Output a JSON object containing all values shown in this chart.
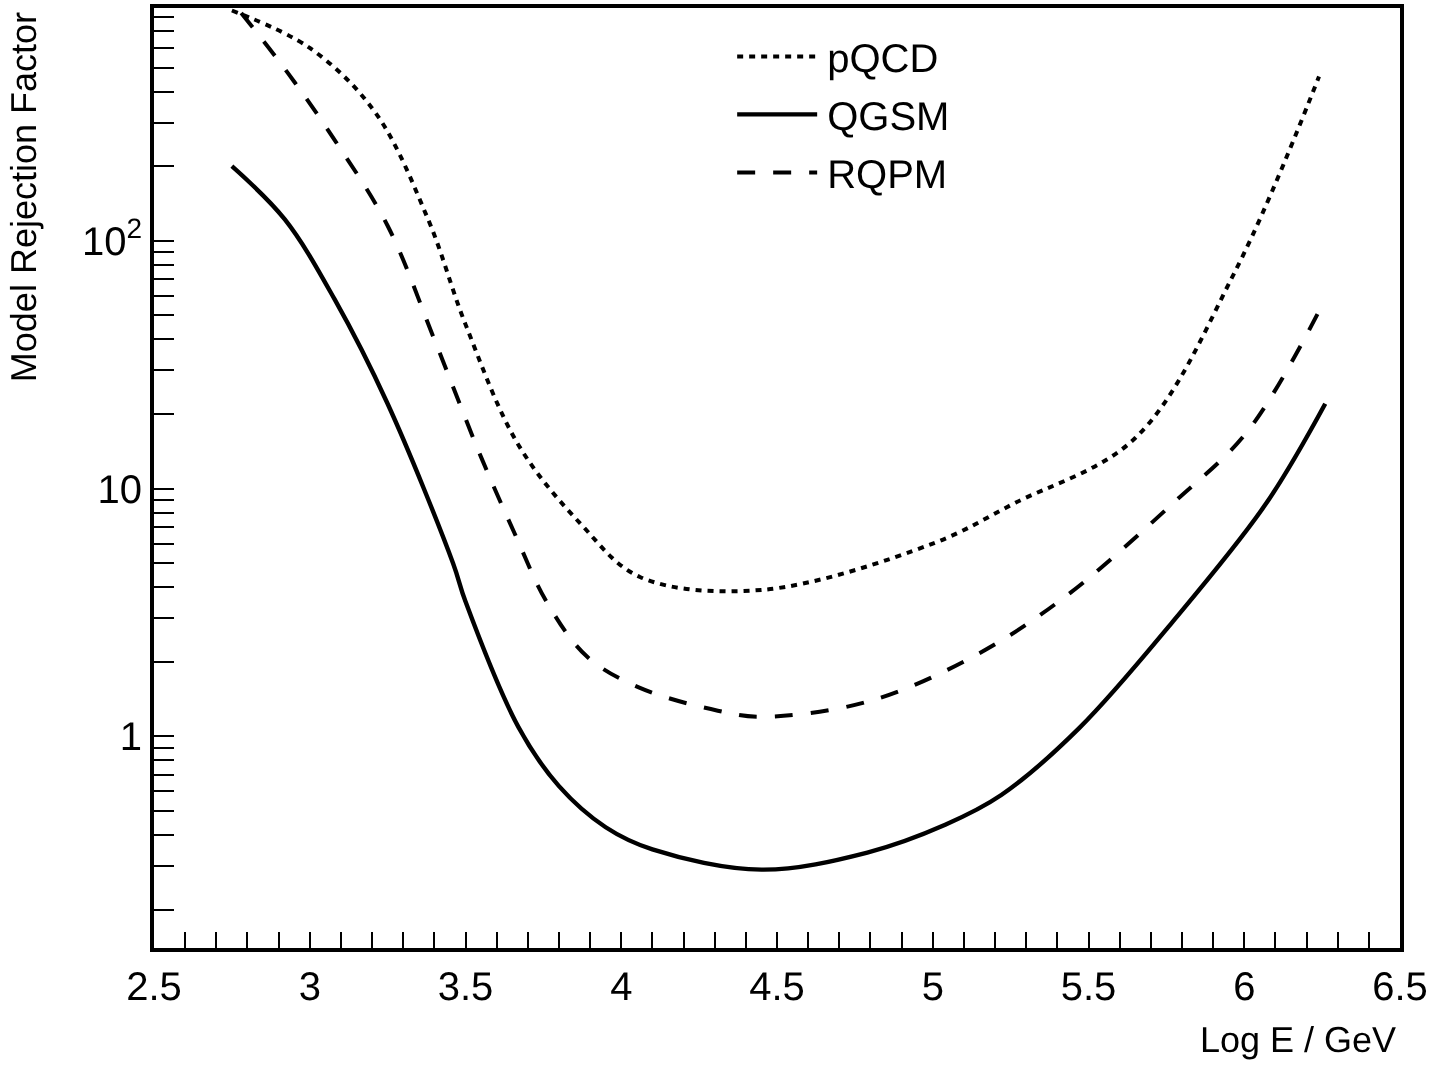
{
  "chart_data": {
    "type": "line",
    "xlabel": "Log E / GeV",
    "ylabel": "Model Rejection Factor",
    "log": "y",
    "legend": "top",
    "marker": "none",
    "xlim": [
      2.5,
      6.5
    ],
    "ylim": [
      0.14,
      870
    ],
    "xticks": [
      2.5,
      {
        "value": 2.6,
        "label": null
      },
      {
        "value": 2.7,
        "label": null
      },
      {
        "value": 2.8,
        "label": null
      },
      {
        "value": 2.9,
        "label": null
      },
      3,
      {
        "value": 3.1,
        "label": null
      },
      {
        "value": 3.2,
        "label": null
      },
      {
        "value": 3.3,
        "label": null
      },
      {
        "value": 3.4,
        "label": null
      },
      3.5,
      {
        "value": 3.6,
        "label": null
      },
      {
        "value": 3.7,
        "label": null
      },
      {
        "value": 3.8,
        "label": null
      },
      {
        "value": 3.9,
        "label": null
      },
      4,
      {
        "value": 4.1,
        "label": null
      },
      {
        "value": 4.2,
        "label": null
      },
      {
        "value": 4.3,
        "label": null
      },
      {
        "value": 4.4,
        "label": null
      },
      4.5,
      {
        "value": 4.6,
        "label": null
      },
      {
        "value": 4.7,
        "label": null
      },
      {
        "value": 4.8,
        "label": null
      },
      {
        "value": 4.9,
        "label": null
      },
      5,
      {
        "value": 5.1,
        "label": null
      },
      {
        "value": 5.2,
        "label": null
      },
      {
        "value": 5.3,
        "label": null
      },
      {
        "value": 5.4,
        "label": null
      },
      5.5,
      {
        "value": 5.6,
        "label": null
      },
      {
        "value": 5.7,
        "label": null
      },
      {
        "value": 5.8,
        "label": null
      },
      {
        "value": 5.9,
        "label": null
      },
      6,
      {
        "value": 6.1,
        "label": null
      },
      {
        "value": 6.2,
        "label": null
      },
      {
        "value": 6.3,
        "label": null
      },
      {
        "value": 6.4,
        "label": null
      },
      6.5
    ],
    "yticks": [
      {
        "value": 0.2,
        "label": null
      },
      {
        "value": 0.3,
        "label": null
      },
      {
        "value": 0.4,
        "label": null
      },
      {
        "value": 0.5,
        "label": null
      },
      {
        "value": 0.6,
        "label": null
      },
      {
        "value": 0.7,
        "label": null
      },
      {
        "value": 0.8,
        "label": null
      },
      {
        "value": 0.9,
        "label": null
      },
      1,
      {
        "value": 2,
        "label": null
      },
      {
        "value": 3,
        "label": null
      },
      {
        "value": 4,
        "label": null
      },
      {
        "value": 5,
        "label": null
      },
      {
        "value": 6,
        "label": null
      },
      {
        "value": 7,
        "label": null
      },
      {
        "value": 8,
        "label": null
      },
      {
        "value": 9,
        "label": null
      },
      10,
      {
        "value": 20,
        "label": null
      },
      {
        "value": 30,
        "label": null
      },
      {
        "value": 40,
        "label": null
      },
      {
        "value": 50,
        "label": null
      },
      {
        "value": 60,
        "label": null
      },
      {
        "value": 70,
        "label": null
      },
      {
        "value": 80,
        "label": null
      },
      {
        "value": 90,
        "label": null
      },
      {
        "value": 100,
        "label": "10$^{2}$"
      },
      {
        "value": 200,
        "label": null
      },
      {
        "value": 300,
        "label": null
      },
      {
        "value": 400,
        "label": null
      },
      {
        "value": 500,
        "label": null
      },
      {
        "value": 600,
        "label": null
      },
      {
        "value": 700,
        "label": null
      },
      {
        "value": 800,
        "label": null
      }
    ],
    "series": [
      {
        "name": "pQCD",
        "color": "#000000",
        "line_style": "dotted",
        "x": [
          2.75,
          3.0,
          3.21,
          3.38,
          3.5,
          3.67,
          3.87,
          4.06,
          4.45,
          5.0,
          5.26,
          5.65,
          5.97,
          6.24
        ],
        "values": [
          850,
          600,
          330,
          122,
          46,
          15,
          7.2,
          4.4,
          3.9,
          6.0,
          8.7,
          16,
          75,
          460
        ]
      },
      {
        "name": "QGSM",
        "color": "#000000",
        "line_style": "solid",
        "x": [
          2.75,
          2.92,
          3.08,
          3.25,
          3.46,
          3.5,
          3.67,
          3.8,
          3.95,
          4.1,
          4.45,
          4.79,
          5.04,
          5.22,
          5.47,
          5.77,
          6.07,
          6.26
        ],
        "values": [
          200,
          122,
          58,
          22,
          5.0,
          3.5,
          1.09,
          0.63,
          0.43,
          0.35,
          0.29,
          0.34,
          0.44,
          0.58,
          1.08,
          2.9,
          8.7,
          22
        ]
      },
      {
        "name": "RQPM",
        "color": "#000000",
        "line_style": "dashed",
        "x": [
          2.78,
          2.93,
          3.08,
          3.25,
          3.4,
          3.55,
          3.66,
          3.76,
          3.89,
          4.06,
          4.31,
          4.45,
          4.79,
          5.13,
          5.43,
          5.77,
          6.01,
          6.24
        ],
        "values": [
          830,
          475,
          255,
          115,
          40,
          13.4,
          6.5,
          3.5,
          2.1,
          1.57,
          1.27,
          1.2,
          1.38,
          2.1,
          3.7,
          8.7,
          17,
          52
        ]
      }
    ]
  }
}
